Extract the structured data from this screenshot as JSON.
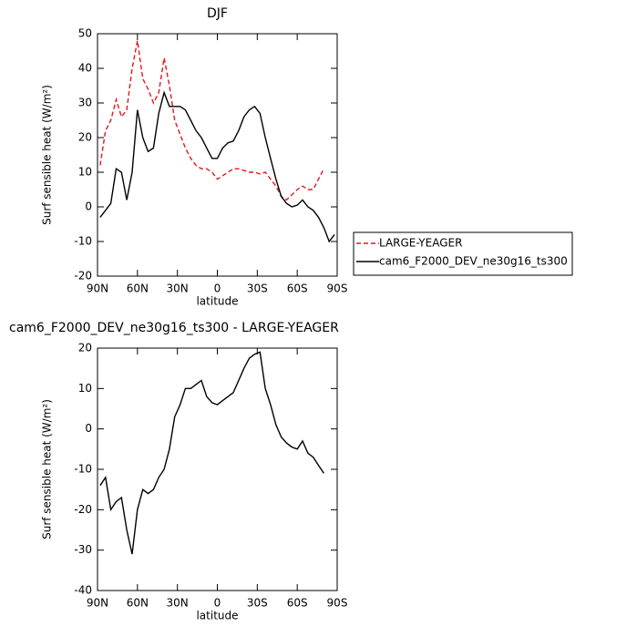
{
  "chart_data": [
    {
      "type": "line",
      "title": "DJF",
      "ylabel": "Surf sensible heat (W/m²)",
      "xlabel": "latitude",
      "x": [
        88,
        84,
        80,
        76,
        72,
        68,
        64,
        60,
        56,
        52,
        48,
        44,
        40,
        36,
        32,
        28,
        24,
        20,
        16,
        12,
        8,
        4,
        0,
        -4,
        -8,
        -12,
        -16,
        -20,
        -24,
        -28,
        -32,
        -36,
        -40,
        -44,
        -48,
        -52,
        -56,
        -60,
        -64,
        -68,
        -72,
        -76,
        -80,
        -84,
        -88
      ],
      "series": [
        {
          "name": "LARGE-YEAGER",
          "color": "#e8141c",
          "dash": true,
          "values": [
            12,
            22,
            25,
            31,
            26,
            28,
            40,
            48,
            37,
            34,
            30,
            33,
            43,
            35,
            25,
            21,
            17,
            14,
            12,
            11,
            11,
            10,
            8,
            9,
            10,
            11,
            11,
            10.5,
            10,
            10,
            9.5,
            10,
            8,
            6,
            3,
            2,
            3.5,
            5,
            6,
            5,
            5,
            8,
            11,
            null,
            null
          ]
        },
        {
          "name": "cam6_F2000_DEV_ne30g16_ts300",
          "color": "#000000",
          "dash": false,
          "values": [
            -3,
            -1,
            1,
            11,
            10,
            2,
            10,
            28,
            20,
            16,
            17,
            27,
            33,
            29,
            29,
            29,
            28,
            25,
            22,
            20,
            17,
            14,
            14,
            17,
            18.5,
            19,
            22,
            26,
            28,
            29,
            27,
            20,
            14,
            8,
            3,
            1,
            0,
            0.5,
            2,
            0,
            -1,
            -3,
            -6,
            -10,
            -8
          ]
        }
      ],
      "xlim": [
        90,
        -90
      ],
      "xticks": [
        {
          "value": 90,
          "label": "90N"
        },
        {
          "value": 60,
          "label": "60N"
        },
        {
          "value": 30,
          "label": "30N"
        },
        0,
        {
          "value": -30,
          "label": "30S"
        },
        {
          "value": -60,
          "label": "60S"
        },
        {
          "value": -90,
          "label": "90S"
        }
      ],
      "ylim": [
        -20,
        50
      ],
      "yticks": [
        -20,
        -10,
        0,
        10,
        20,
        30,
        40,
        50
      ],
      "legend": "right"
    },
    {
      "type": "line",
      "title": "cam6_F2000_DEV_ne30g16_ts300 - LARGE-YEAGER",
      "ylabel": "Surf sensible heat (W/m²)",
      "xlabel": "latitude",
      "x": [
        88,
        84,
        80,
        76,
        72,
        68,
        64,
        60,
        56,
        52,
        48,
        44,
        40,
        36,
        32,
        28,
        24,
        20,
        16,
        12,
        8,
        4,
        0,
        -4,
        -8,
        -12,
        -16,
        -20,
        -24,
        -28,
        -32,
        -36,
        -40,
        -44,
        -48,
        -52,
        -56,
        -60,
        -64,
        -68,
        -72,
        -76,
        -80,
        -84,
        -88
      ],
      "values": [
        -14,
        -12,
        -20,
        -18,
        -17,
        -25,
        -31,
        -20,
        -15,
        -16,
        -15,
        -12,
        -10,
        -5,
        3,
        6,
        10,
        10,
        11,
        12,
        8,
        6.5,
        6,
        7,
        8,
        9,
        12,
        15,
        17.5,
        18.5,
        19,
        10,
        6,
        1,
        -2,
        -3.5,
        -4.5,
        -5,
        -3,
        -6,
        -7,
        -9,
        -11,
        null,
        null
      ],
      "color": "#000000",
      "xlim": [
        90,
        -90
      ],
      "xticks": [
        {
          "value": 90,
          "label": "90N"
        },
        {
          "value": 60,
          "label": "60N"
        },
        {
          "value": 30,
          "label": "30N"
        },
        0,
        {
          "value": -30,
          "label": "30S"
        },
        {
          "value": -60,
          "label": "60S"
        },
        {
          "value": -90,
          "label": "90S"
        }
      ],
      "ylim": [
        -40,
        20
      ],
      "yticks": [
        -40,
        -30,
        -20,
        -10,
        0,
        10,
        20
      ]
    }
  ]
}
